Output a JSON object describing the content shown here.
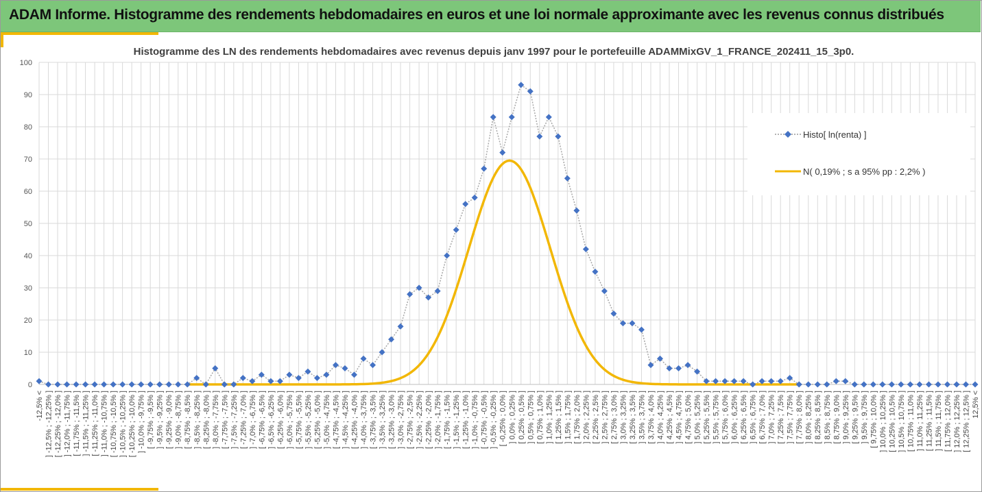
{
  "header": {
    "title": "ADAM Informe. Histogramme des rendements hebdomadaires en euros et une loi normale approximante avec les revenus connus distribués"
  },
  "colors": {
    "header_bg": "#7dc67a",
    "accent": "#f2b705",
    "series_histo": "#4472c4",
    "series_normal": "#f2b705",
    "grid": "#d9d9d9"
  },
  "chart_data": {
    "type": "line",
    "title": "Histogramme des LN des rendements hebdomadaires avec revenus depuis janv 1997 pour le portefeuille ADAMMixGV_1_FRANCE_202411_15_3p0.",
    "xlabel": "",
    "ylabel": "",
    "ylim": [
      0,
      100
    ],
    "yticks": [
      0,
      10,
      20,
      30,
      40,
      50,
      60,
      70,
      80,
      90,
      100
    ],
    "grid": true,
    "legend_position": "right",
    "categories": [
      "-12,5% <",
      "] -12,5% ; -12,25% ]",
      "[ -12,25% ; -12,0% ]",
      "] -12,0% ; -11,75% ]",
      "[ -11,75% ; -11,5% ]",
      "] -11,5% ; -11,25% ]",
      "[ -11,25% ; -11,0% ]",
      "] -11,0% ; -10,75% ]",
      "[ -10,75% ; -10,5% ]",
      "] -10,5% ; -10,25% ]",
      "[ -10,25% ; -10,0% ]",
      "] -10,0% ; -9,75% ]",
      "[ -9,75% ; -9,5% ]",
      "] -9,5% ; -9,25% ]",
      "[ -9,25% ; -9,0% ]",
      "] -9,0% ; -8,75% ]",
      "[ -8,75% ; -8,5% ]",
      "] -8,5% ; -8,25% ]",
      "[ -8,25% ; -8,0% ]",
      "] -8,0% ; -7,75% ]",
      "[ -7,75% ; -7,5% ]",
      "] -7,5% ; -7,25% ]",
      "[ -7,25% ; -7,0% ]",
      "] -7,0% ; -6,75% ]",
      "[ -6,75% ; -6,5% ]",
      "] -6,5% ; -6,25% ]",
      "[ -6,25% ; -6,0% ]",
      "] -6,0% ; -5,75% ]",
      "[ -5,75% ; -5,5% ]",
      "] -5,5% ; -5,25% ]",
      "[ -5,25% ; -5,0% ]",
      "] -5,0% ; -4,75% ]",
      "[ -4,75% ; -4,5% ]",
      "] -4,5% ; -4,25% ]",
      "[ -4,25% ; -4,0% ]",
      "] -4,0% ; -3,75% ]",
      "[ -3,75% ; -3,5% ]",
      "] -3,5% ; -3,25% ]",
      "[ -3,25% ; -3,0% ]",
      "] -3,0% ; -2,75% ]",
      "[ -2,75% ; -2,5% ]",
      "] -2,5% ; -2,25% ]",
      "[ -2,25% ; -2,0% ]",
      "] -2,0% ; -1,75% ]",
      "[ -1,75% ; -1,5% ]",
      "] -1,5% ; -1,25% ]",
      "[ -1,25% ; -1,0% ]",
      "] -1,0% ; -0,75% ]",
      "[ -0,75% ; -0,5% ]",
      "] -0,5% ; -0,25% ]",
      "[ -0,25% ; 0,0% ]",
      "] 0,0% ; 0,25% ]",
      "[ 0,25% ; 0,5% ]",
      "] 0,5% ; 0,75% ]",
      "[ 0,75% ; 1,0% ]",
      "] 1,0% ; 1,25% ]",
      "[ 1,25% ; 1,5% ]",
      "] 1,5% ; 1,75% ]",
      "[ 1,75% ; 2,0% ]",
      "] 2,0% ; 2,25% ]",
      "[ 2,25% ; 2,5% ]",
      "] 2,5% ; 2,75% ]",
      "[ 2,75% ; 3,0% ]",
      "] 3,0% ; 3,25% ]",
      "[ 3,25% ; 3,5% ]",
      "] 3,5% ; 3,75% ]",
      "[ 3,75% ; 4,0% ]",
      "] 4,0% ; 4,25% ]",
      "[ 4,25% ; 4,5% ]",
      "] 4,5% ; 4,75% ]",
      "[ 4,75% ; 5,0% ]",
      "] 5,0% ; 5,25% ]",
      "[ 5,25% ; 5,5% ]",
      "] 5,5% ; 5,75% ]",
      "[ 5,75% ; 6,0% ]",
      "] 6,0% ; 6,25% ]",
      "[ 6,25% ; 6,5% ]",
      "] 6,5% ; 6,75% ]",
      "[ 6,75% ; 7,0% ]",
      "] 7,0% ; 7,25% ]",
      "[ 7,25% ; 7,5% ]",
      "] 7,5% ; 7,75% ]",
      "[ 7,75% ; 8,0% ]",
      "] 8,0% ; 8,25% ]",
      "[ 8,25% ; 8,5% ]",
      "] 8,5% ; 8,75% ]",
      "[ 8,75% ; 9,0% ]",
      "] 9,0% ; 9,25% ]",
      "[ 9,25% ; 9,5% ]",
      "] 9,5% ; 9,75% ]",
      "[ 9,75% ; 10,0% ]",
      "] 10,0% ; 10,25% ]",
      "[ 10,25% ; 10,5% ]",
      "] 10,5% ; 10,75% ]",
      "[ 10,75% ; 11,0% ]",
      "] 11,0% ; 11,25% ]",
      "[ 11,25% ; 11,5% ]",
      "] 11,5% ; 11,75% ]",
      "[ 11,75% ; 12,0% ]",
      "] 12,0% ; 12,25% ]",
      "[ 12,25% ; 12,5% ]",
      "12,5% <"
    ],
    "series": [
      {
        "name": "Histo[ ln(renta) ]",
        "style": "dotted-line-diamond-markers",
        "values": [
          1,
          0,
          0,
          0,
          0,
          0,
          0,
          0,
          0,
          0,
          0,
          0,
          0,
          0,
          0,
          0,
          0,
          2,
          0,
          5,
          0,
          0,
          2,
          1,
          3,
          1,
          1,
          3,
          2,
          4,
          2,
          3,
          6,
          5,
          3,
          8,
          6,
          10,
          14,
          18,
          28,
          30,
          27,
          29,
          40,
          48,
          56,
          58,
          67,
          83,
          72,
          83,
          93,
          91,
          77,
          83,
          77,
          64,
          54,
          42,
          35,
          29,
          22,
          19,
          19,
          17,
          6,
          8,
          5,
          5,
          6,
          4,
          1,
          1,
          1,
          1,
          1,
          0,
          1,
          1,
          1,
          2,
          0,
          0,
          0,
          0,
          1,
          1,
          0,
          0,
          0,
          0,
          0,
          0,
          0,
          0,
          0,
          0,
          0,
          0,
          0,
          0
        ]
      },
      {
        "name": "N( 0,19% ; s a 95% pp : 2,2% )",
        "style": "smooth-line",
        "mean_pct": 0.19,
        "peak": 69.5,
        "sigma_bins": 4.4
      }
    ]
  }
}
